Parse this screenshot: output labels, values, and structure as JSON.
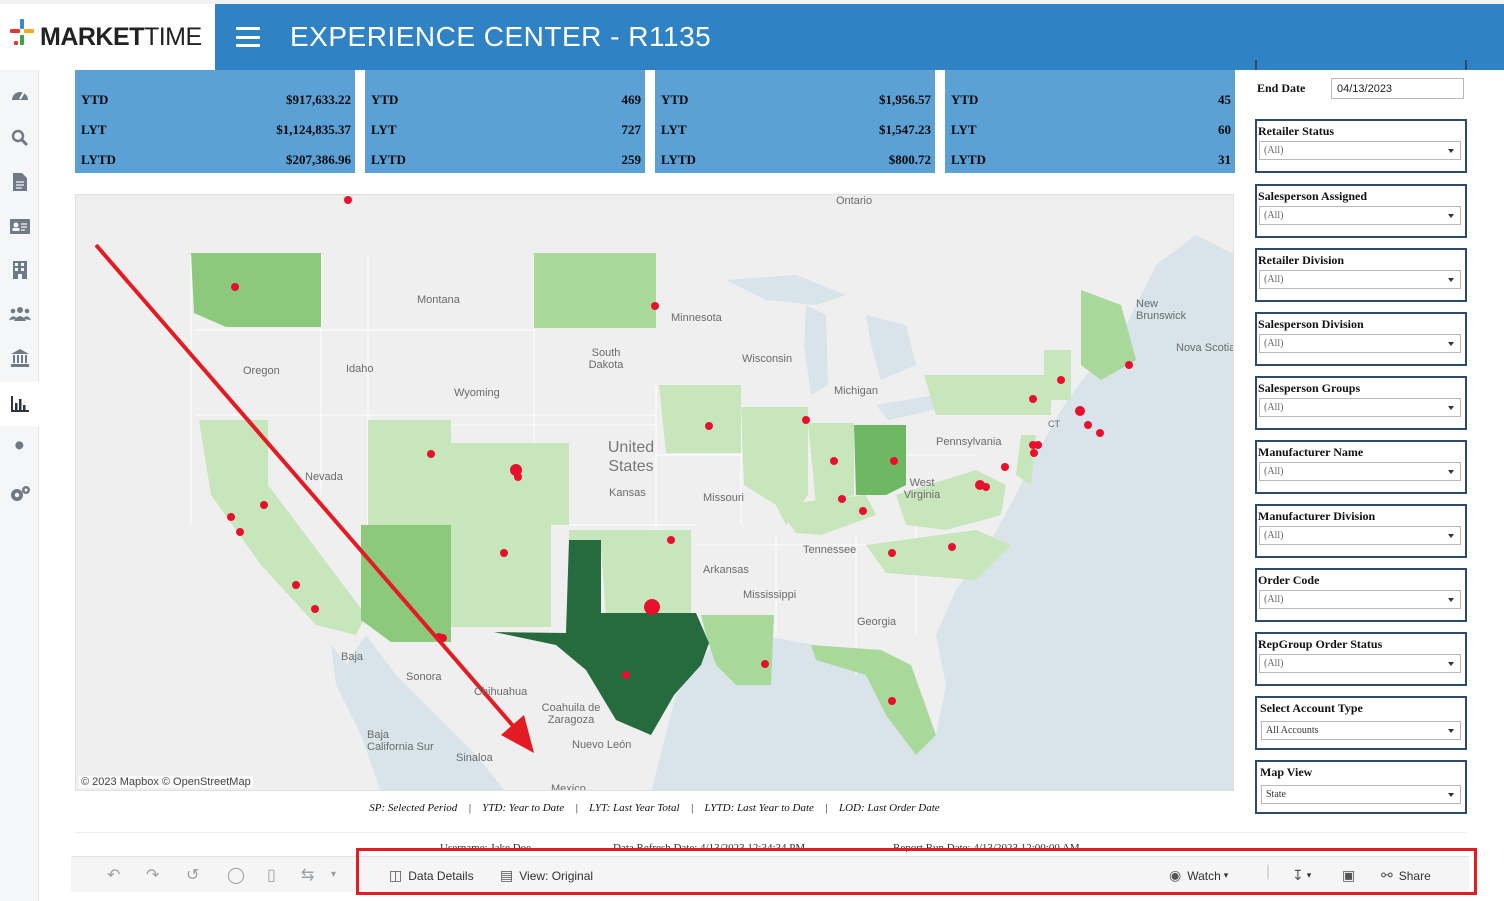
{
  "header": {
    "logo_bold": "MARKET",
    "logo_light": "TIME",
    "title": "EXPERIENCE CENTER - R1135"
  },
  "sidebar": {
    "items": [
      {
        "icon": "dashboard-gauge-icon"
      },
      {
        "icon": "search-icon"
      },
      {
        "icon": "document-icon"
      },
      {
        "icon": "contact-card-icon"
      },
      {
        "icon": "building-icon"
      },
      {
        "icon": "users-group-icon"
      },
      {
        "icon": "bank-icon"
      },
      {
        "icon": "bar-chart-icon",
        "active": true
      },
      {
        "icon": "wrench-icon"
      },
      {
        "icon": "settings-gears-icon"
      }
    ]
  },
  "kpis": [
    {
      "rows": [
        {
          "label": "YTD",
          "value": "$917,633.22"
        },
        {
          "label": "LYT",
          "value": "$1,124,835.37"
        },
        {
          "label": "LYTD",
          "value": "$207,386.96"
        }
      ]
    },
    {
      "rows": [
        {
          "label": "YTD",
          "value": "469"
        },
        {
          "label": "LYT",
          "value": "727"
        },
        {
          "label": "LYTD",
          "value": "259"
        }
      ]
    },
    {
      "rows": [
        {
          "label": "YTD",
          "value": "$1,956.57"
        },
        {
          "label": "LYT",
          "value": "$1,547.23"
        },
        {
          "label": "LYTD",
          "value": "$800.72"
        }
      ]
    },
    {
      "rows": [
        {
          "label": "YTD",
          "value": "45"
        },
        {
          "label": "LYT",
          "value": "60"
        },
        {
          "label": "LYTD",
          "value": "31"
        }
      ]
    }
  ],
  "map": {
    "attribution": "© 2023 Mapbox  © OpenStreetMap",
    "labels": {
      "ontario": "Ontario",
      "montana": "Montana",
      "minnesota": "Minnesota",
      "new_brunswick": "New Brunswick",
      "nova_scotia": "Nova Scotia",
      "south_dakota": "South Dakota",
      "oregon": "Oregon",
      "idaho": "Idaho",
      "wisconsin": "Wisconsin",
      "michigan": "Michigan",
      "wyoming": "Wyoming",
      "united_states": "United States",
      "pennsylvania": "Pennsylvania",
      "ct": "CT",
      "nevada": "Nevada",
      "kansas": "Kansas",
      "missouri": "Missouri",
      "west_virginia": "West Virginia",
      "tennessee": "Tennessee",
      "arkansas": "Arkansas",
      "mississippi": "Mississippi",
      "georgia": "Georgia",
      "baja": "Baja",
      "sonora": "Sonora",
      "chihuahua": "Chihuahua",
      "coahuila": "Coahuila de Zaragoza",
      "nuevo_leon": "Nuevo León",
      "baja_california_sur": "Baja California Sur",
      "sinaloa": "Sinaloa",
      "mexico": "Mexico"
    },
    "colors": {
      "water": "#d8e3ea",
      "land": "#efefef",
      "light_green": "#c8e6bc",
      "mid_green": "#a9d99a",
      "green": "#8cc97c",
      "ohio_green": "#6fb863",
      "texas_green": "#256b3d",
      "pin": "#e8102c"
    }
  },
  "legend": {
    "text": "SP: Selected Period    |    YTD: Year to Date    |    LYT: Last Year Total    |    LYTD: Last Year to Date    |    LOD: Last Order Date"
  },
  "filters": {
    "end_date_label": "End Date",
    "end_date_value": "04/13/2023",
    "items": [
      {
        "label": "Retailer Status",
        "value": "(All)"
      },
      {
        "label": "Salesperson Assigned",
        "value": "(All)"
      },
      {
        "label": "Retailer Division",
        "value": "(All)"
      },
      {
        "label": "Salesperson Division",
        "value": "(All)"
      },
      {
        "label": "Salesperson Groups",
        "value": "(All)"
      },
      {
        "label": "Manufacturer Name",
        "value": "(All)"
      },
      {
        "label": "Manufacturer Division",
        "value": "(All)"
      },
      {
        "label": "Order Code",
        "value": "(All)"
      },
      {
        "label": "RepGroup Order Status",
        "value": "(All)"
      },
      {
        "label": "Select Account Type",
        "value": "All Accounts"
      },
      {
        "label": "Map View",
        "value": "State"
      }
    ]
  },
  "footer_info": {
    "username": "Username: Jake Doe",
    "refresh": "Data Refresh Date: 4/13/2023 12:34:34 PM",
    "run": "Report Run Date: 4/13/2023 12:00:00 AM"
  },
  "toolbar": {
    "data_details": "Data Details",
    "view_original": "View: Original",
    "watch": "Watch",
    "share": "Share"
  }
}
